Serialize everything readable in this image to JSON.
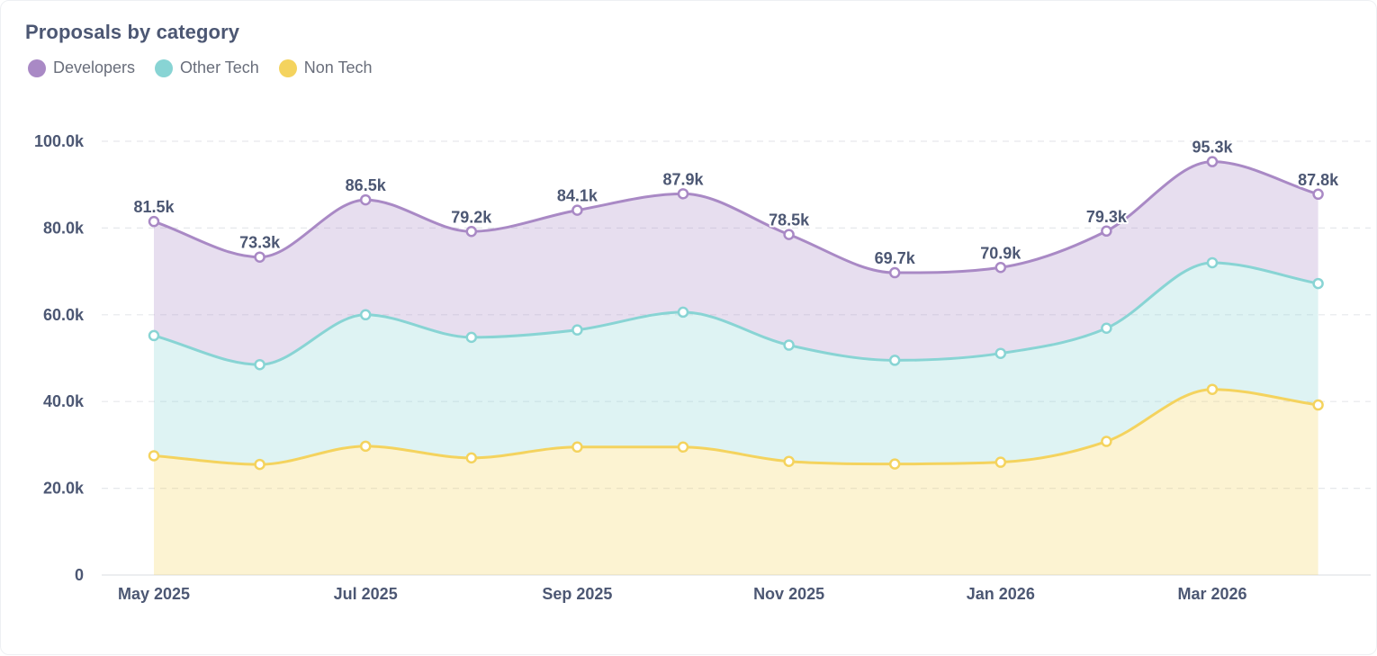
{
  "card": {
    "title": "Proposals by category"
  },
  "colors": {
    "developers": "#a989c5",
    "other_tech": "#88d4d4",
    "non_tech": "#f4d35e"
  },
  "chart_data": {
    "type": "area",
    "stacked": true,
    "title": "Proposals by category",
    "legend_position": "top-left",
    "grid": true,
    "x": [
      "May 2025",
      "Jun 2025",
      "Jul 2025",
      "Aug 2025",
      "Sep 2025",
      "Oct 2025",
      "Nov 2025",
      "Dec 2025",
      "Jan 2026",
      "Feb 2026",
      "Mar 2026",
      "Apr 2026"
    ],
    "x_tick_labels": [
      "May 2025",
      "Jul 2025",
      "Sep 2025",
      "Nov 2025",
      "Jan 2026",
      "Mar 2026"
    ],
    "y_tick_labels": [
      "0",
      "20.0k",
      "40.0k",
      "60.0k",
      "80.0k",
      "100.0k"
    ],
    "ylim": [
      0,
      100000
    ],
    "series": [
      {
        "name": "Non Tech",
        "key": "non_tech",
        "values": [
          27500,
          25500,
          29700,
          27000,
          29500,
          29500,
          26200,
          25600,
          26000,
          30800,
          42800,
          39200
        ]
      },
      {
        "name": "Other Tech",
        "key": "other_tech",
        "values": [
          27700,
          23000,
          30300,
          27800,
          27000,
          31100,
          26800,
          23900,
          25100,
          26100,
          29200,
          28000
        ]
      },
      {
        "name": "Developers",
        "key": "developers",
        "values": [
          26300,
          24800,
          26500,
          24400,
          27600,
          27300,
          25500,
          20200,
          19800,
          22400,
          23300,
          20600
        ]
      }
    ],
    "totals_labels": [
      "81.5k",
      "73.3k",
      "86.5k",
      "79.2k",
      "84.1k",
      "87.9k",
      "78.5k",
      "69.7k",
      "70.9k",
      "79.3k",
      "95.3k",
      "87.8k"
    ],
    "totals": [
      81500,
      73300,
      86500,
      79200,
      84100,
      87900,
      78500,
      69700,
      70900,
      79300,
      95300,
      87800
    ]
  }
}
